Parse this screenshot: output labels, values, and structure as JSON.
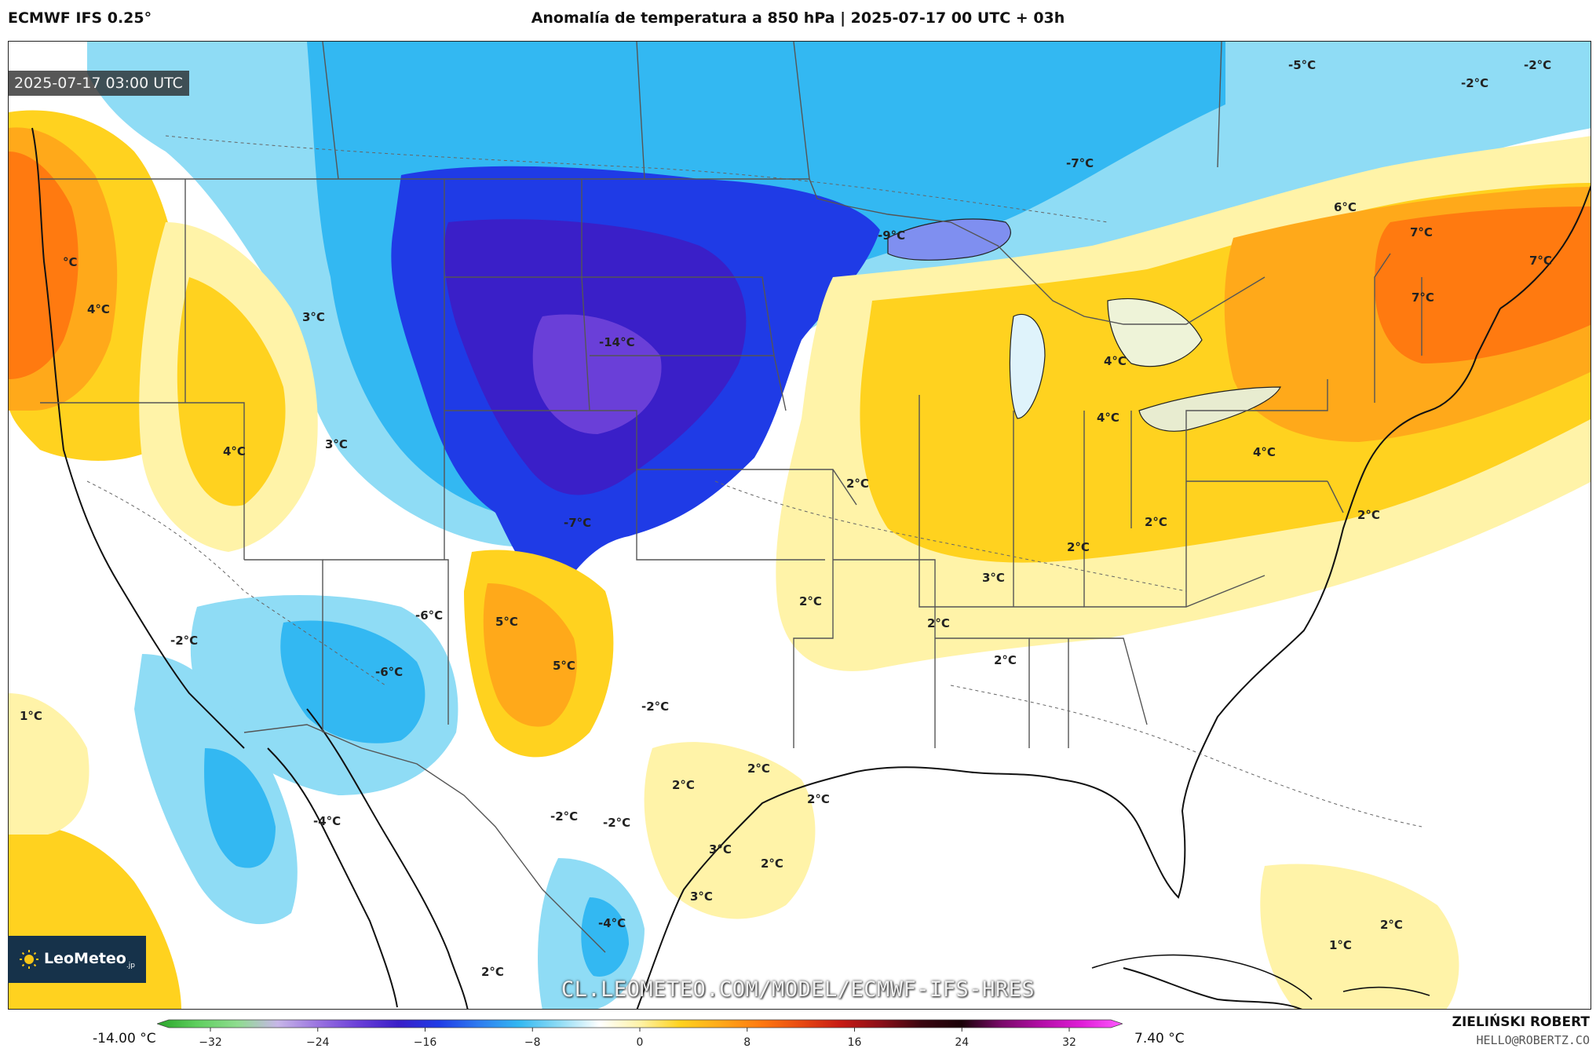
{
  "header": {
    "model": "ECMWF IFS 0.25°",
    "title": "Anomalía de temperatura a 850 hPa | 2025-07-17 00 UTC + 03h"
  },
  "timestamp": "2025-07-17 03:00 UTC",
  "logo": {
    "main": "LeoMeteo",
    "suffix": ".jp"
  },
  "watermark": "CL.LEOMETEO.COM/MODEL/ECMWF-IFS-HRES",
  "colorbar": {
    "min_label": "-14.00 °C",
    "max_label": "7.40 °C",
    "ticks": [
      "−32",
      "−24",
      "−16",
      "−8",
      "0",
      "8",
      "16",
      "24",
      "32"
    ],
    "range": [
      -32,
      32
    ],
    "stops": [
      "#2aa52a",
      "#5fcf5f",
      "#8fdc8f",
      "#c7b6e8",
      "#9a73e0",
      "#6a3fd8",
      "#3a1fc8",
      "#1f3be6",
      "#2f7cf0",
      "#33b8f2",
      "#8fdcf5",
      "#ffffff",
      "#fff3a8",
      "#ffd21f",
      "#ffa91a",
      "#ff7a10",
      "#e84a12",
      "#c61a14",
      "#8a0f18",
      "#3a0610",
      "#1a0208",
      "#7a0a6a",
      "#b40ea8",
      "#e01ed8",
      "#ff5aff"
    ]
  },
  "author": {
    "name": "ZIELIŃSKI ROBERT",
    "email": "HELLO@ROBERTZ.CO"
  },
  "map_labels": [
    {
      "text": "-5°C"
    },
    {
      "text": "-2°C"
    },
    {
      "text": "-2°C"
    },
    {
      "text": "-7°C"
    },
    {
      "text": "-9°C"
    },
    {
      "text": "6°C"
    },
    {
      "text": "7°C"
    },
    {
      "text": "7°C"
    },
    {
      "text": "-14°C"
    },
    {
      "text": "7°C"
    },
    {
      "text": "3°C"
    },
    {
      "text": "°C"
    },
    {
      "text": "4°C"
    },
    {
      "text": "4°C"
    },
    {
      "text": "4°C"
    },
    {
      "text": "4°C"
    },
    {
      "text": "4°C"
    },
    {
      "text": "3°C"
    },
    {
      "text": "2°C"
    },
    {
      "text": "2°C"
    },
    {
      "text": "2°C"
    },
    {
      "text": "2°C"
    },
    {
      "text": "-7°C"
    },
    {
      "text": "3°C"
    },
    {
      "text": "2°C"
    },
    {
      "text": "2°C"
    },
    {
      "text": "-6°C"
    },
    {
      "text": "5°C"
    },
    {
      "text": "-2°C"
    },
    {
      "text": "-6°C"
    },
    {
      "text": "5°C"
    },
    {
      "text": "2°C"
    },
    {
      "text": "1°C"
    },
    {
      "text": "-2°C"
    },
    {
      "text": "2°C"
    },
    {
      "text": "2°C"
    },
    {
      "text": "2°C"
    },
    {
      "text": "-4°C"
    },
    {
      "text": "-2°C"
    },
    {
      "text": "-2°C"
    },
    {
      "text": "3°C"
    },
    {
      "text": "2°C"
    },
    {
      "text": "3°C"
    },
    {
      "text": "-4°C"
    },
    {
      "text": "2°C"
    },
    {
      "text": "2°C"
    },
    {
      "text": "1°C"
    }
  ]
}
